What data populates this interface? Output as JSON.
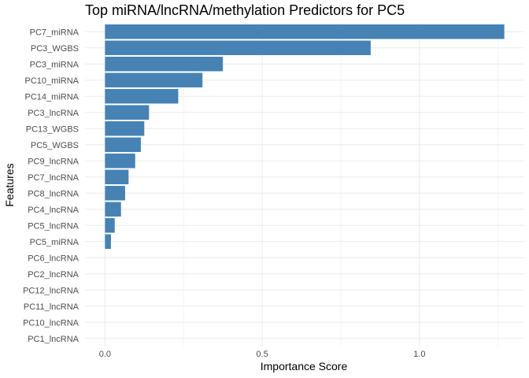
{
  "chart_data": {
    "type": "bar",
    "orientation": "horizontal",
    "title": "Top miRNA/lncRNA/methylation Predictors for PC5",
    "xlabel": "Importance Score",
    "ylabel": "Features",
    "xlim": [
      -0.0635,
      1.3335
    ],
    "xticks": [
      0.0,
      0.5,
      1.0
    ],
    "xtick_labels": [
      "0.0",
      "0.5",
      "1.0"
    ],
    "grid": true,
    "categories": [
      "PC7_miRNA",
      "PC3_WGBS",
      "PC3_miRNA",
      "PC10_miRNA",
      "PC14_miRNA",
      "PC3_lncRNA",
      "PC13_WGBS",
      "PC5_WGBS",
      "PC9_lncRNA",
      "PC7_lncRNA",
      "PC8_lncRNA",
      "PC4_lncRNA",
      "PC5_lncRNA",
      "PC5_miRNA",
      "PC6_lncRNA",
      "PC2_lncRNA",
      "PC12_lncRNA",
      "PC11_lncRNA",
      "PC10_lncRNA",
      "PC1_lncRNA"
    ],
    "values": [
      1.27,
      0.845,
      0.375,
      0.31,
      0.233,
      0.14,
      0.125,
      0.114,
      0.096,
      0.075,
      0.064,
      0.051,
      0.031,
      0.019,
      0.0,
      0.0,
      0.0,
      0.0,
      0.0,
      0.0
    ],
    "bar_color": "#4682b4"
  }
}
